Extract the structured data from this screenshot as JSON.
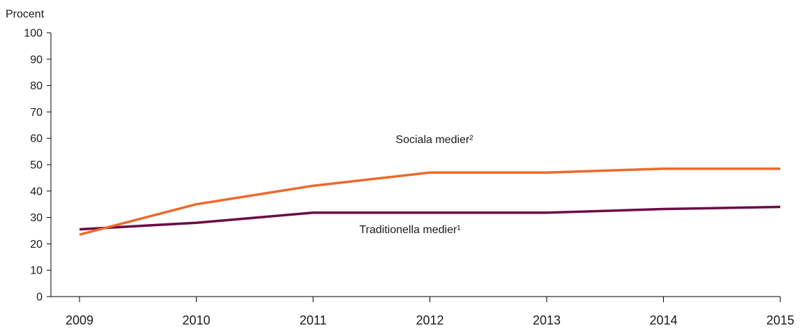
{
  "chart_data": {
    "type": "line",
    "ylabel": "Procent",
    "x": [
      "2009",
      "2010",
      "2011",
      "2012",
      "2013",
      "2014",
      "2015"
    ],
    "ylim": [
      0,
      100
    ],
    "yticks": [
      "0",
      "10",
      "20",
      "30",
      "40",
      "50",
      "60",
      "70",
      "80",
      "90",
      "100"
    ],
    "grid": false,
    "series": [
      {
        "name": "Sociala medier²",
        "color": "#ec6a2c",
        "values": [
          23.5,
          35,
          42,
          47,
          47,
          48.5,
          48.5
        ]
      },
      {
        "name": "Traditionella medier¹",
        "color": "#6b0d45",
        "values": [
          25.5,
          28,
          31.8,
          31.8,
          31.8,
          33.2,
          34
        ]
      }
    ]
  }
}
